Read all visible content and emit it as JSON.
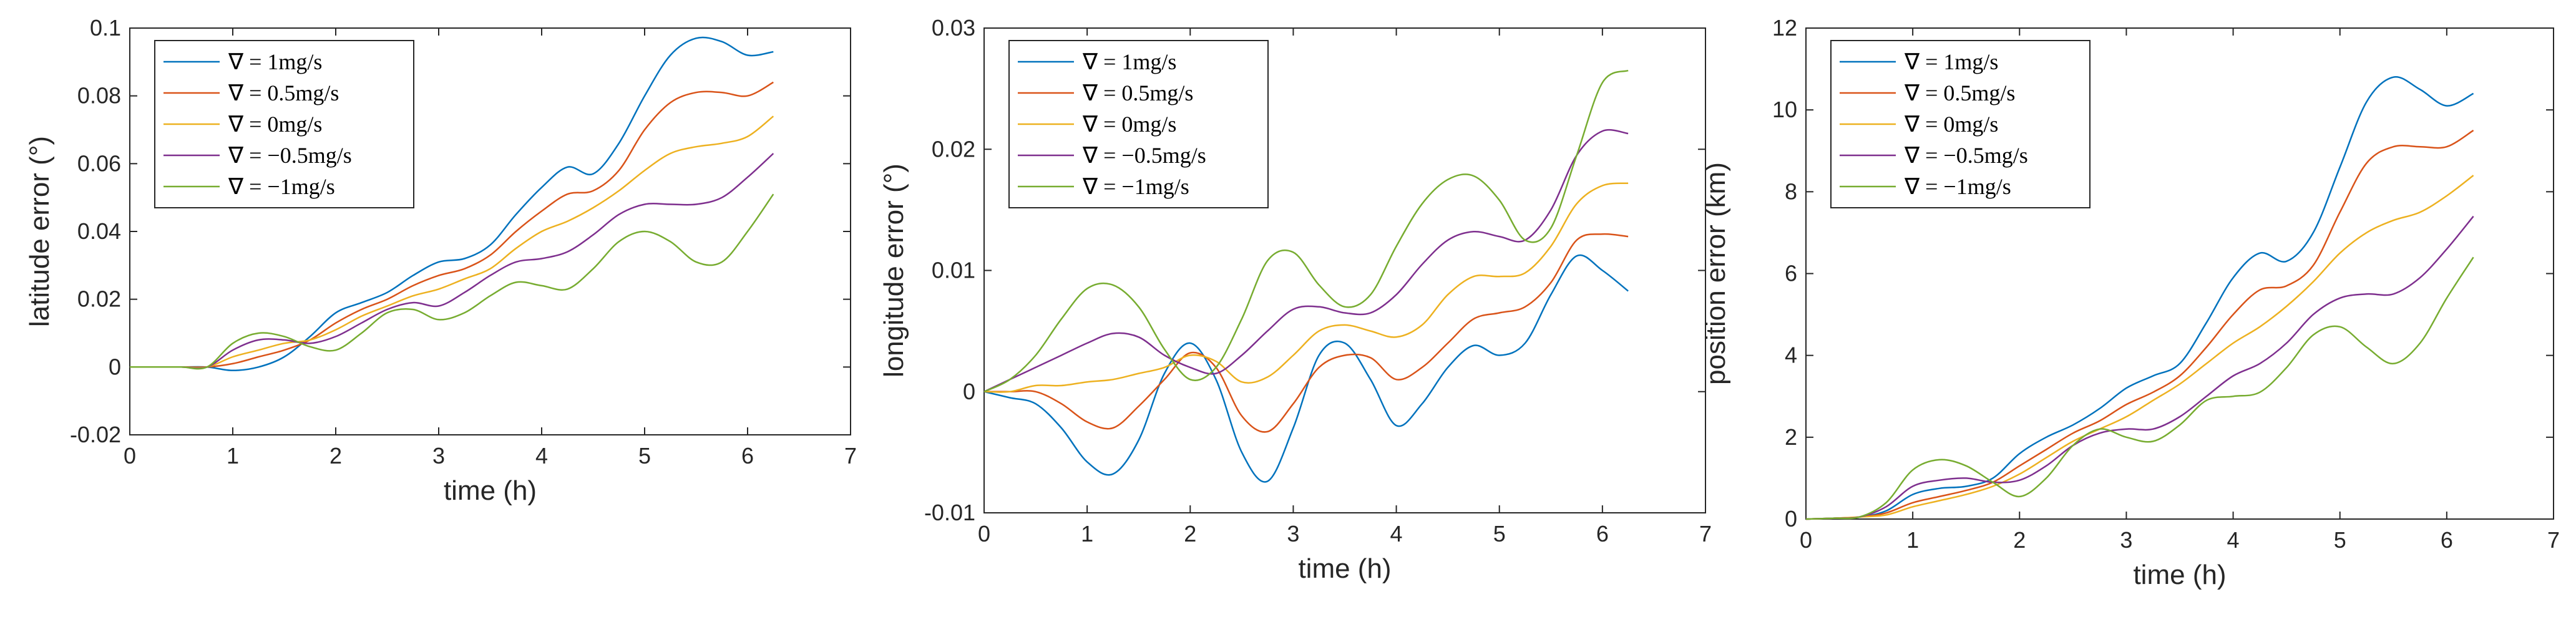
{
  "chart_data": [
    {
      "type": "line",
      "xlabel": "time (h)",
      "ylabel": "latitude error (°)",
      "xlim": [
        0,
        7
      ],
      "ylim": [
        -0.02,
        0.1
      ],
      "xticks": [
        "0",
        "1",
        "2",
        "3",
        "4",
        "5",
        "6",
        "7"
      ],
      "yticks": [
        "-0.02",
        "0",
        "0.02",
        "0.04",
        "0.06",
        "0.08",
        "0.1"
      ],
      "x": [
        0,
        0.25,
        0.5,
        0.75,
        1,
        1.25,
        1.5,
        1.75,
        2,
        2.25,
        2.5,
        2.75,
        3,
        3.25,
        3.5,
        3.75,
        4,
        4.25,
        4.5,
        4.75,
        5,
        5.25,
        5.5,
        5.75,
        6,
        6.25
      ],
      "legend_position": "top-left",
      "series": [
        {
          "name": "∇ = 1mg/s",
          "color": "#0072BD",
          "values": [
            0,
            0,
            0,
            0,
            -0.001,
            0,
            0.003,
            0.009,
            0.016,
            0.019,
            0.022,
            0.027,
            0.031,
            0.032,
            0.036,
            0.045,
            0.053,
            0.059,
            0.057,
            0.066,
            0.08,
            0.092,
            0.097,
            0.096,
            0.092,
            0.093
          ]
        },
        {
          "name": "∇ = 0.5mg/s",
          "color": "#D95319",
          "values": [
            0,
            0,
            0,
            0,
            0.001,
            0.003,
            0.005,
            0.008,
            0.013,
            0.017,
            0.02,
            0.024,
            0.027,
            0.029,
            0.033,
            0.04,
            0.046,
            0.051,
            0.052,
            0.058,
            0.07,
            0.078,
            0.081,
            0.081,
            0.08,
            0.084
          ]
        },
        {
          "name": "∇ = 0mg/s",
          "color": "#EDB120",
          "values": [
            0,
            0,
            0,
            0,
            0.003,
            0.005,
            0.007,
            0.008,
            0.011,
            0.015,
            0.018,
            0.021,
            0.023,
            0.026,
            0.029,
            0.035,
            0.04,
            0.043,
            0.047,
            0.052,
            0.058,
            0.063,
            0.065,
            0.066,
            0.068,
            0.074
          ]
        },
        {
          "name": "∇ = −0.5mg/s",
          "color": "#7E2F8E",
          "values": [
            0,
            0,
            0,
            0,
            0.005,
            0.008,
            0.008,
            0.007,
            0.009,
            0.013,
            0.017,
            0.019,
            0.018,
            0.022,
            0.027,
            0.031,
            0.032,
            0.034,
            0.039,
            0.045,
            0.048,
            0.048,
            0.048,
            0.05,
            0.056,
            0.063
          ]
        },
        {
          "name": "∇ = −1mg/s",
          "color": "#77AC30",
          "values": [
            0,
            0,
            0,
            0,
            0.007,
            0.01,
            0.009,
            0.006,
            0.005,
            0.01,
            0.016,
            0.017,
            0.014,
            0.016,
            0.021,
            0.025,
            0.024,
            0.023,
            0.029,
            0.037,
            0.04,
            0.037,
            0.031,
            0.031,
            0.04,
            0.051
          ]
        }
      ]
    },
    {
      "type": "line",
      "xlabel": "time (h)",
      "ylabel": "longitude error (°)",
      "xlim": [
        0,
        7
      ],
      "ylim": [
        -0.01,
        0.03
      ],
      "xticks": [
        "0",
        "1",
        "2",
        "3",
        "4",
        "5",
        "6",
        "7"
      ],
      "yticks": [
        "-0.01",
        "0",
        "0.01",
        "0.02",
        "0.03"
      ],
      "x": [
        0,
        0.25,
        0.5,
        0.75,
        1,
        1.25,
        1.5,
        1.75,
        2,
        2.25,
        2.5,
        2.75,
        3,
        3.25,
        3.5,
        3.75,
        4,
        4.25,
        4.5,
        4.75,
        5,
        5.25,
        5.5,
        5.75,
        6,
        6.25
      ],
      "legend_position": "top-left",
      "series": [
        {
          "name": "∇ = 1mg/s",
          "color": "#0072BD",
          "values": [
            0,
            -0.0005,
            -0.001,
            -0.003,
            -0.0058,
            -0.0068,
            -0.004,
            0.0015,
            0.004,
            0.001,
            -0.005,
            -0.0074,
            -0.003,
            0.003,
            0.004,
            0.001,
            -0.0028,
            -0.001,
            0.002,
            0.0038,
            0.003,
            0.004,
            0.008,
            0.0112,
            0.01,
            0.0083
          ]
        },
        {
          "name": "∇ = 0.5mg/s",
          "color": "#D95319",
          "values": [
            0,
            0,
            0,
            -0.001,
            -0.0025,
            -0.003,
            -0.0012,
            0.001,
            0.0032,
            0.002,
            -0.002,
            -0.0033,
            -0.001,
            0.002,
            0.003,
            0.0028,
            0.001,
            0.002,
            0.004,
            0.006,
            0.0065,
            0.007,
            0.009,
            0.0125,
            0.013,
            0.0128
          ]
        },
        {
          "name": "∇ = 0mg/s",
          "color": "#EDB120",
          "values": [
            0,
            0,
            0.0005,
            0.0005,
            0.0008,
            0.001,
            0.0015,
            0.002,
            0.003,
            0.0025,
            0.0008,
            0.0012,
            0.003,
            0.005,
            0.0055,
            0.005,
            0.0045,
            0.0055,
            0.008,
            0.0095,
            0.0095,
            0.0098,
            0.012,
            0.0155,
            0.017,
            0.0172
          ]
        },
        {
          "name": "∇ = −0.5mg/s",
          "color": "#7E2F8E",
          "values": [
            0,
            0.001,
            0.002,
            0.003,
            0.004,
            0.0048,
            0.0045,
            0.003,
            0.002,
            0.0015,
            0.003,
            0.005,
            0.0068,
            0.007,
            0.0065,
            0.0065,
            0.008,
            0.0105,
            0.0125,
            0.0132,
            0.0128,
            0.0125,
            0.015,
            0.0195,
            0.0215,
            0.0213
          ]
        },
        {
          "name": "∇ = −1mg/s",
          "color": "#77AC30",
          "values": [
            0,
            0.001,
            0.003,
            0.006,
            0.0085,
            0.0088,
            0.007,
            0.0035,
            0.001,
            0.002,
            0.006,
            0.0108,
            0.0115,
            0.0088,
            0.007,
            0.008,
            0.012,
            0.0155,
            0.0175,
            0.0178,
            0.0158,
            0.0125,
            0.0135,
            0.0195,
            0.0255,
            0.0265
          ]
        }
      ]
    },
    {
      "type": "line",
      "xlabel": "time (h)",
      "ylabel": "position error (km)",
      "xlim": [
        0,
        7
      ],
      "ylim": [
        0,
        12
      ],
      "xticks": [
        "0",
        "1",
        "2",
        "3",
        "4",
        "5",
        "6",
        "7"
      ],
      "yticks": [
        "0",
        "2",
        "4",
        "6",
        "8",
        "10",
        "12"
      ],
      "x": [
        0,
        0.25,
        0.5,
        0.75,
        1,
        1.25,
        1.5,
        1.75,
        2,
        2.25,
        2.5,
        2.75,
        3,
        3.25,
        3.5,
        3.75,
        4,
        4.25,
        4.5,
        4.75,
        5,
        5.25,
        5.5,
        5.75,
        6,
        6.25
      ],
      "legend_position": "top-left",
      "series": [
        {
          "name": "∇ = 1mg/s",
          "color": "#0072BD",
          "values": [
            0,
            0.02,
            0.05,
            0.2,
            0.6,
            0.75,
            0.8,
            1.0,
            1.6,
            2.0,
            2.3,
            2.7,
            3.2,
            3.5,
            3.8,
            4.8,
            5.9,
            6.5,
            6.3,
            7.0,
            8.6,
            10.2,
            10.8,
            10.5,
            10.1,
            10.4
          ]
        },
        {
          "name": "∇ = 0.5mg/s",
          "color": "#D95319",
          "values": [
            0,
            0.02,
            0.05,
            0.15,
            0.4,
            0.55,
            0.7,
            0.9,
            1.3,
            1.7,
            2.1,
            2.4,
            2.8,
            3.1,
            3.5,
            4.2,
            5.0,
            5.6,
            5.7,
            6.2,
            7.5,
            8.7,
            9.1,
            9.1,
            9.1,
            9.5
          ]
        },
        {
          "name": "∇ = 0mg/s",
          "color": "#EDB120",
          "values": [
            0,
            0.02,
            0.05,
            0.1,
            0.3,
            0.45,
            0.6,
            0.8,
            1.1,
            1.5,
            1.9,
            2.2,
            2.5,
            2.9,
            3.3,
            3.8,
            4.3,
            4.7,
            5.2,
            5.8,
            6.5,
            7.0,
            7.3,
            7.5,
            7.9,
            8.4
          ]
        },
        {
          "name": "∇ = −0.5mg/s",
          "color": "#7E2F8E",
          "values": [
            0,
            0.02,
            0.05,
            0.3,
            0.8,
            0.95,
            1.0,
            0.9,
            0.95,
            1.3,
            1.8,
            2.1,
            2.2,
            2.2,
            2.5,
            3.0,
            3.5,
            3.8,
            4.3,
            5.0,
            5.4,
            5.5,
            5.5,
            5.9,
            6.6,
            7.4
          ]
        },
        {
          "name": "∇ = −1mg/s",
          "color": "#77AC30",
          "values": [
            0,
            0.02,
            0.05,
            0.4,
            1.2,
            1.45,
            1.3,
            0.9,
            0.55,
            1.0,
            1.8,
            2.2,
            2.0,
            1.9,
            2.3,
            2.9,
            3.0,
            3.1,
            3.7,
            4.5,
            4.7,
            4.2,
            3.8,
            4.3,
            5.4,
            6.4
          ]
        }
      ]
    }
  ]
}
